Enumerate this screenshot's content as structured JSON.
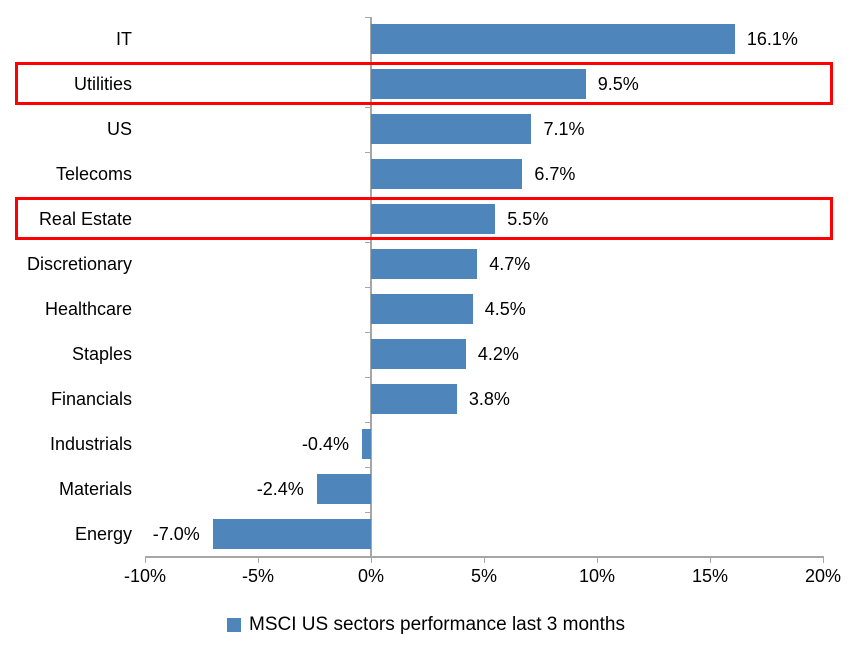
{
  "chart_data": {
    "type": "bar",
    "orientation": "horizontal",
    "categories": [
      "IT",
      "Utilities",
      "US",
      "Telecoms",
      "Real Estate",
      "Discretionary",
      "Healthcare",
      "Staples",
      "Financials",
      "Industrials",
      "Materials",
      "Energy"
    ],
    "values": [
      16.1,
      9.5,
      7.1,
      6.7,
      5.5,
      4.7,
      4.5,
      4.2,
      3.8,
      -0.4,
      -2.4,
      -7.0
    ],
    "value_labels": [
      "16.1%",
      "9.5%",
      "7.1%",
      "6.7%",
      "5.5%",
      "4.7%",
      "4.5%",
      "4.2%",
      "3.8%",
      "-0.4%",
      "-2.4%",
      "-7.0%"
    ],
    "xlim": [
      -10,
      20
    ],
    "x_ticks": [
      {
        "value": -10,
        "label": "-10%"
      },
      {
        "value": -5,
        "label": "-5%"
      },
      {
        "value": 0,
        "label": "0%"
      },
      {
        "value": 5,
        "label": "5%"
      },
      {
        "value": 10,
        "label": "10%"
      },
      {
        "value": 15,
        "label": "15%"
      },
      {
        "value": 20,
        "label": "20%"
      }
    ],
    "grid": false,
    "bar_color": "#4E86BC",
    "axis_color": "#A6A6A6",
    "text_color": "#000000",
    "highlight_color": "#FF0000",
    "highlighted_categories": [
      "Utilities",
      "Real Estate"
    ],
    "legend": {
      "position": "bottom",
      "marker_color": "#4E86BC",
      "label": "MSCI US sectors performance last 3 months"
    }
  }
}
